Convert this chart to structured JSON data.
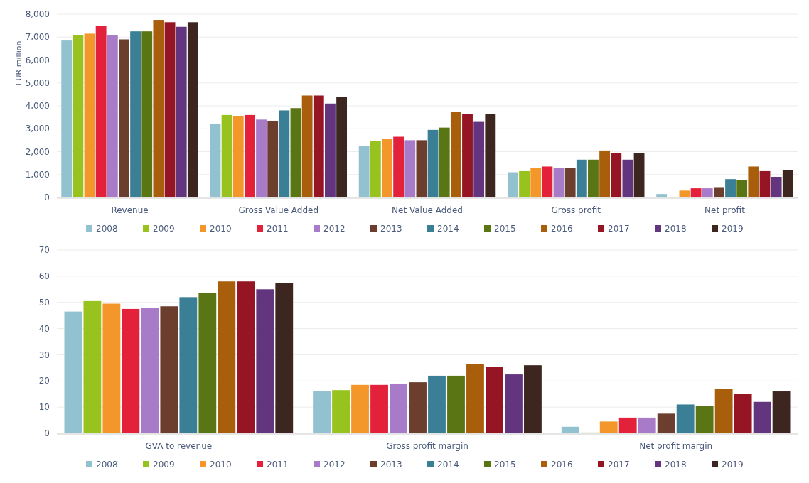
{
  "chart_data": [
    {
      "type": "bar",
      "ylabel": "EUR million",
      "categories": [
        "Revenue",
        "Gross Value Added",
        "Net Value Added",
        "Gross profit",
        "Net profit"
      ],
      "ylim": [
        0,
        8000
      ],
      "yticks": [
        {
          "value": 0,
          "label": "0"
        },
        {
          "value": 1000,
          "label": "1,000"
        },
        {
          "value": 2000,
          "label": "2,000"
        },
        {
          "value": 3000,
          "label": "3,000"
        },
        {
          "value": 4000,
          "label": "4,000"
        },
        {
          "value": 5000,
          "label": "5,000"
        },
        {
          "value": 6000,
          "label": "6,000"
        },
        {
          "value": 7000,
          "label": "7,000"
        },
        {
          "value": 8000,
          "label": "8,000"
        }
      ],
      "grid": "y",
      "legend": "bottom",
      "series": [
        {
          "name": "2008",
          "color": "#92c1d0",
          "values": [
            6850,
            3200,
            2250,
            1100,
            150
          ]
        },
        {
          "name": "2009",
          "color": "#98c21e",
          "values": [
            7100,
            3600,
            2450,
            1150,
            25
          ]
        },
        {
          "name": "2010",
          "color": "#f4972a",
          "values": [
            7150,
            3550,
            2550,
            1300,
            300
          ]
        },
        {
          "name": "2011",
          "color": "#e3213a",
          "values": [
            7500,
            3600,
            2650,
            1350,
            400
          ]
        },
        {
          "name": "2012",
          "color": "#a87bc9",
          "values": [
            7100,
            3400,
            2500,
            1300,
            400
          ]
        },
        {
          "name": "2013",
          "color": "#6b3e2e",
          "values": [
            6900,
            3350,
            2500,
            1300,
            450
          ]
        },
        {
          "name": "2014",
          "color": "#3a7f96",
          "values": [
            7250,
            3800,
            2950,
            1650,
            800
          ]
        },
        {
          "name": "2015",
          "color": "#5a7614",
          "values": [
            7250,
            3900,
            3050,
            1650,
            750
          ]
        },
        {
          "name": "2016",
          "color": "#a85e0b",
          "values": [
            7750,
            4450,
            3750,
            2050,
            1350
          ]
        },
        {
          "name": "2017",
          "color": "#961525",
          "values": [
            7650,
            4450,
            3650,
            1950,
            1150
          ]
        },
        {
          "name": "2018",
          "color": "#63357f",
          "values": [
            7450,
            4100,
            3300,
            1650,
            900
          ]
        },
        {
          "name": "2019",
          "color": "#3e2620",
          "values": [
            7650,
            4400,
            3650,
            1950,
            1200
          ]
        }
      ]
    },
    {
      "type": "bar",
      "categories": [
        "GVA to revenue",
        "Gross profit margin",
        "Net profit margin"
      ],
      "ylim": [
        0,
        70
      ],
      "yticks": [
        0,
        10,
        20,
        30,
        40,
        50,
        60,
        70
      ],
      "grid": "y",
      "legend": "bottom",
      "series": [
        {
          "name": "2008",
          "color": "#92c1d0",
          "values": [
            46.5,
            16,
            2.5
          ]
        },
        {
          "name": "2009",
          "color": "#98c21e",
          "values": [
            50.5,
            16.5,
            0.3
          ]
        },
        {
          "name": "2010",
          "color": "#f4972a",
          "values": [
            49.5,
            18.5,
            4.5
          ]
        },
        {
          "name": "2011",
          "color": "#e3213a",
          "values": [
            47.5,
            18.5,
            6
          ]
        },
        {
          "name": "2012",
          "color": "#a87bc9",
          "values": [
            48,
            19,
            6
          ]
        },
        {
          "name": "2013",
          "color": "#6b3e2e",
          "values": [
            48.5,
            19.5,
            7.5
          ]
        },
        {
          "name": "2014",
          "color": "#3a7f96",
          "values": [
            52,
            22,
            11
          ]
        },
        {
          "name": "2015",
          "color": "#5a7614",
          "values": [
            53.5,
            22,
            10.5
          ]
        },
        {
          "name": "2016",
          "color": "#a85e0b",
          "values": [
            58,
            26.5,
            17
          ]
        },
        {
          "name": "2017",
          "color": "#961525",
          "values": [
            58,
            25.5,
            15
          ]
        },
        {
          "name": "2018",
          "color": "#63357f",
          "values": [
            55,
            22.5,
            12
          ]
        },
        {
          "name": "2019",
          "color": "#3e2620",
          "values": [
            57.5,
            26,
            16
          ]
        }
      ]
    }
  ]
}
